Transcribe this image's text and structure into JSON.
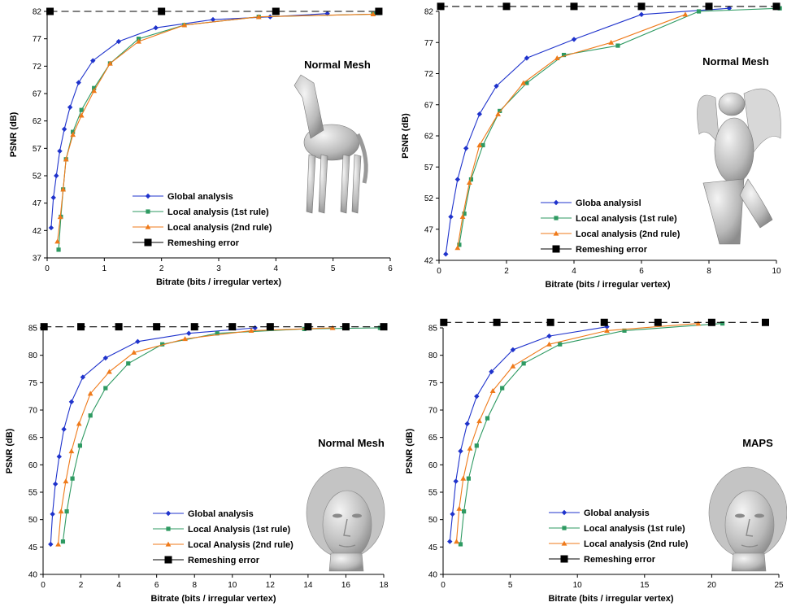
{
  "colors": {
    "global": "#1f33cc",
    "local1": "#2e9a62",
    "local2": "#ef7a1a",
    "remesh": "#000000"
  },
  "chart_data": [
    {
      "type": "line",
      "xlabel": "Bitrate (bits / irregular vertex)",
      "ylabel": "PSNR (dB)",
      "xlim": [
        0,
        6
      ],
      "ylim": [
        37,
        82
      ],
      "xticks": [
        "0",
        "1",
        "2",
        "3",
        "4",
        "5",
        "6"
      ],
      "yticks": [
        "37",
        "42",
        "47",
        "52",
        "57",
        "62",
        "67",
        "72",
        "77",
        "82"
      ],
      "annotation": "Normal Mesh",
      "image": "horse",
      "legend_position": "lower-middle",
      "series": [
        {
          "name": "Global analysis",
          "key": "global",
          "marker": "diamond",
          "dashed": false,
          "x": [
            0.07,
            0.11,
            0.16,
            0.22,
            0.3,
            0.4,
            0.55,
            0.8,
            1.25,
            1.9,
            2.9,
            3.9,
            4.9
          ],
          "y": [
            42.5,
            48,
            52,
            56.5,
            60.5,
            64.5,
            69,
            73,
            76.5,
            79,
            80.5,
            81,
            81.6
          ]
        },
        {
          "name": "Local analysis (1st rule)",
          "key": "local1",
          "marker": "square",
          "dashed": false,
          "x": [
            0.2,
            0.24,
            0.28,
            0.33,
            0.45,
            0.6,
            0.82,
            1.1,
            1.6,
            2.4,
            3.7,
            5.7,
            5.8
          ],
          "y": [
            38.5,
            44.5,
            49.5,
            55,
            60,
            64,
            68,
            72.5,
            77,
            79.5,
            81,
            81.5,
            81.7
          ]
        },
        {
          "name": "Local analysis (2nd rule)",
          "key": "local2",
          "marker": "triangle",
          "dashed": false,
          "x": [
            0.18,
            0.23,
            0.28,
            0.33,
            0.45,
            0.6,
            0.82,
            1.1,
            1.6,
            2.4,
            3.7,
            5.7
          ],
          "y": [
            40,
            44.5,
            49.5,
            55,
            59.5,
            63,
            67.5,
            72.5,
            76.5,
            79.5,
            81,
            81.5
          ]
        },
        {
          "name": "Remeshing error",
          "key": "remesh",
          "marker": "bigsquare",
          "dashed": true,
          "x": [
            0.05,
            2,
            4,
            5.8
          ],
          "y": [
            82,
            82,
            82,
            82
          ]
        }
      ]
    },
    {
      "type": "line",
      "xlabel": "Bitrate (bits / irregular vertex)",
      "ylabel": "PSNR (dB)",
      "xlim": [
        0,
        10
      ],
      "ylim": [
        42,
        82
      ],
      "xticks": [
        "0",
        "2",
        "4",
        "6",
        "8",
        "10"
      ],
      "yticks": [
        "42",
        "47",
        "52",
        "57",
        "62",
        "67",
        "72",
        "77",
        "82"
      ],
      "annotation": "Normal Mesh",
      "image": "gargoyle",
      "legend_position": "lower-middle",
      "series": [
        {
          "name": "Globa analysisl",
          "key": "global",
          "marker": "diamond",
          "dashed": false,
          "x": [
            0.2,
            0.35,
            0.55,
            0.8,
            1.2,
            1.7,
            2.6,
            4,
            6,
            8.6
          ],
          "y": [
            43,
            49,
            55,
            60,
            65.5,
            70,
            74.5,
            77.5,
            81.5,
            82.5
          ]
        },
        {
          "name": "Local analysis (1st rule)",
          "key": "local1",
          "marker": "square",
          "dashed": false,
          "x": [
            0.6,
            0.75,
            0.95,
            1.3,
            1.8,
            2.6,
            3.7,
            5.3,
            7.7,
            10.1
          ],
          "y": [
            44.5,
            49.5,
            55,
            60.5,
            66,
            70.5,
            75,
            76.5,
            82,
            82.5
          ]
        },
        {
          "name": "Local analysis (2nd rule)",
          "key": "local2",
          "marker": "triangle",
          "dashed": false,
          "x": [
            0.55,
            0.7,
            0.9,
            1.2,
            1.75,
            2.5,
            3.5,
            5.1,
            7.3
          ],
          "y": [
            44,
            49,
            54.5,
            60.5,
            65.5,
            70.5,
            74.5,
            77,
            81.5
          ]
        },
        {
          "name": "Remeshing error",
          "key": "remesh",
          "marker": "bigsquare",
          "dashed": true,
          "x": [
            0.05,
            2,
            4,
            6,
            8,
            10
          ],
          "y": [
            82.8,
            82.8,
            82.8,
            82.8,
            82.8,
            82.8
          ]
        }
      ]
    },
    {
      "type": "line",
      "xlabel": "Bitrate (bits / irregular vertex)",
      "ylabel": "PSNR (dB)",
      "xlim": [
        0,
        18
      ],
      "ylim": [
        40,
        85
      ],
      "xticks": [
        "0",
        "2",
        "4",
        "6",
        "8",
        "10",
        "12",
        "14",
        "16",
        "18"
      ],
      "yticks": [
        "40",
        "45",
        "50",
        "55",
        "60",
        "65",
        "70",
        "75",
        "80",
        "85"
      ],
      "annotation": "Normal Mesh",
      "image": "head",
      "legend_position": "lower-middle",
      "series": [
        {
          "name": "Global analysis",
          "key": "global",
          "marker": "diamond",
          "dashed": false,
          "x": [
            0.4,
            0.5,
            0.65,
            0.85,
            1.1,
            1.5,
            2.1,
            3.3,
            5,
            7.7,
            11.2
          ],
          "y": [
            45.5,
            51,
            56.5,
            61.5,
            66.5,
            71.5,
            76,
            79.5,
            82.5,
            84,
            85
          ]
        },
        {
          "name": "Local Analysis (1st rule)",
          "key": "local1",
          "marker": "square",
          "dashed": false,
          "x": [
            1.05,
            1.25,
            1.55,
            1.95,
            2.5,
            3.3,
            4.5,
            6.3,
            9.2,
            13.8,
            17.8
          ],
          "y": [
            46,
            51.5,
            57.5,
            63.5,
            69,
            74,
            78.5,
            82,
            84,
            84.8,
            85
          ]
        },
        {
          "name": "Local Analysis (2nd rule)",
          "key": "local2",
          "marker": "triangle",
          "dashed": false,
          "x": [
            0.8,
            0.95,
            1.2,
            1.5,
            1.9,
            2.5,
            3.5,
            4.8,
            7.5,
            11,
            15.3
          ],
          "y": [
            45.5,
            51.5,
            57,
            62.5,
            67.5,
            73,
            77,
            80.5,
            83,
            84.5,
            85
          ]
        },
        {
          "name": "Remeshing error",
          "key": "remesh",
          "marker": "bigsquare",
          "dashed": true,
          "x": [
            0.05,
            2,
            4,
            6,
            8,
            10,
            12,
            14,
            16,
            18
          ],
          "y": [
            85.2,
            85.2,
            85.2,
            85.2,
            85.2,
            85.2,
            85.2,
            85.2,
            85.2,
            85.2
          ]
        }
      ]
    },
    {
      "type": "line",
      "xlabel": "Bitrate (bits / irregular vertex)",
      "ylabel": "PSNR (dB)",
      "xlim": [
        0,
        25
      ],
      "ylim": [
        40,
        85
      ],
      "xticks": [
        "0",
        "5",
        "10",
        "15",
        "20",
        "25"
      ],
      "yticks": [
        "40",
        "45",
        "50",
        "55",
        "60",
        "65",
        "70",
        "75",
        "80",
        "85"
      ],
      "annotation": "MAPS",
      "image": "head",
      "legend_position": "lower-middle",
      "series": [
        {
          "name": "Global analysis",
          "key": "global",
          "marker": "diamond",
          "dashed": false,
          "x": [
            0.5,
            0.7,
            0.95,
            1.3,
            1.8,
            2.5,
            3.6,
            5.2,
            7.9,
            12.2
          ],
          "y": [
            46,
            51,
            57,
            62.5,
            67.5,
            72.5,
            77,
            81,
            83.5,
            85.2
          ]
        },
        {
          "name": "Local analysis (1st rule)",
          "key": "local1",
          "marker": "square",
          "dashed": false,
          "x": [
            1.3,
            1.55,
            1.9,
            2.5,
            3.3,
            4.4,
            6,
            8.7,
            13.5,
            20.8
          ],
          "y": [
            45.5,
            51.5,
            57.5,
            63.5,
            68.5,
            74,
            78.5,
            82,
            84.5,
            85.8
          ]
        },
        {
          "name": "Local analysis (2nd rule)",
          "key": "local2",
          "marker": "triangle",
          "dashed": false,
          "x": [
            1,
            1.2,
            1.5,
            2,
            2.7,
            3.7,
            5.2,
            7.9,
            12.2,
            19
          ],
          "y": [
            46,
            52,
            57.5,
            63,
            68,
            73.5,
            78,
            82,
            84.5,
            85.8
          ]
        },
        {
          "name": "Remeshing error",
          "key": "remesh",
          "marker": "bigsquare",
          "dashed": true,
          "x": [
            0.05,
            4,
            8,
            12,
            16,
            20,
            24
          ],
          "y": [
            86,
            86,
            86,
            86,
            86,
            86,
            86
          ]
        }
      ]
    }
  ]
}
